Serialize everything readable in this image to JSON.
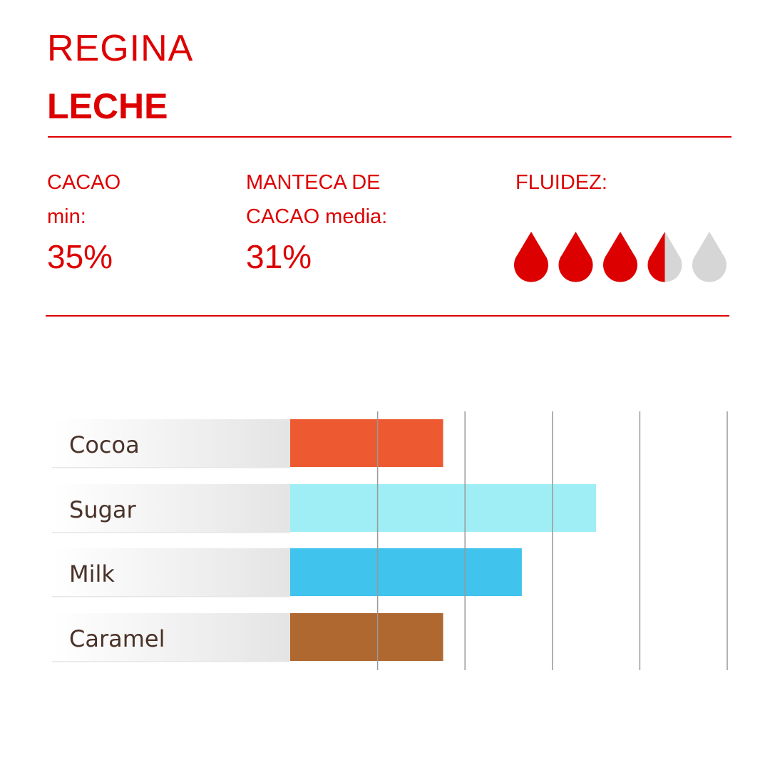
{
  "header": {
    "brand": "REGINA",
    "product": "LECHE"
  },
  "stats": {
    "cacao": {
      "label_line1": "CACAO",
      "label_line2": "min:",
      "value": "35%"
    },
    "manteca": {
      "label_line1": "MANTECA DE",
      "label_line2": "CACAO media:",
      "value": "31%"
    },
    "fluidez": {
      "label": "FLUIDEZ:",
      "rating": 3.5,
      "max": 5,
      "icon": "drop-icon",
      "filled_color": "#dd0000",
      "empty_color": "#d6d6d6"
    }
  },
  "colors": {
    "accent": "#dd0000"
  },
  "chart_data": {
    "type": "bar",
    "orientation": "horizontal",
    "categories": [
      "Cocoa",
      "Sugar",
      "Milk",
      "Caramel"
    ],
    "values": [
      1.75,
      3.5,
      2.65,
      1.75
    ],
    "colors": [
      "#ed5a32",
      "#a0eef5",
      "#40c3ec",
      "#ae6830"
    ],
    "xlim": [
      0,
      5
    ],
    "grid": true,
    "title": "",
    "xlabel": "",
    "ylabel": ""
  }
}
